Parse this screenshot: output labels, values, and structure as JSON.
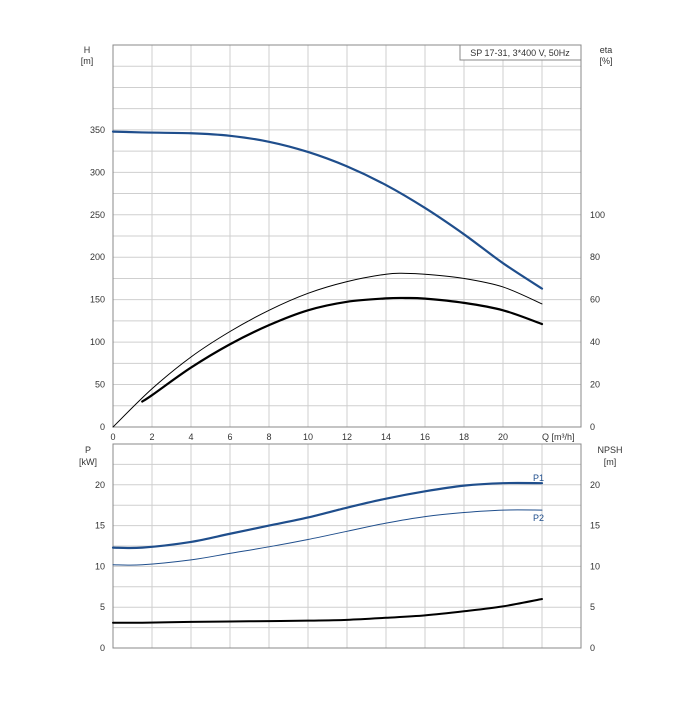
{
  "colors": {
    "blue": "#1f4e8c",
    "black": "#000000",
    "grid": "#cfcfcf",
    "frame": "#888888"
  },
  "chart_data": [
    {
      "type": "line",
      "title": "SP 17-31, 3*400 V, 50Hz",
      "xlabel": "Q [m³/h]",
      "x_ticks": [
        "0",
        "2",
        "4",
        "6",
        "8",
        "10",
        "12",
        "14",
        "16",
        "18",
        "20"
      ],
      "xlim": [
        0,
        24
      ],
      "ylabel_left": [
        "H",
        "[m]"
      ],
      "ylabel_right": [
        "eta",
        "[%]"
      ],
      "y_left_ticks": [
        "0",
        "50",
        "100",
        "150",
        "200",
        "250",
        "300",
        "350"
      ],
      "y_right_ticks": [
        "0",
        "20",
        "40",
        "60",
        "80",
        "100"
      ],
      "ylim_left": [
        0,
        450
      ],
      "ylim_right": [
        0,
        180
      ],
      "grid": true,
      "series": [
        {
          "axis": "left",
          "color": "blue",
          "width": 2.2,
          "x": [
            0,
            1.5,
            4,
            6,
            8,
            10,
            12,
            14,
            16,
            18,
            20,
            22
          ],
          "y": [
            348,
            347,
            346,
            343,
            336,
            324,
            307,
            285,
            258,
            227,
            193,
            163
          ]
        },
        {
          "axis": "right",
          "color": "black",
          "width": 1,
          "x": [
            0,
            2,
            4,
            6,
            8,
            10,
            12,
            14,
            15,
            16,
            18,
            20,
            22
          ],
          "y": [
            0,
            18,
            33,
            45,
            55,
            63,
            68.5,
            72,
            72.4,
            72,
            70,
            66,
            58
          ]
        },
        {
          "axis": "right",
          "color": "black",
          "width": 2.2,
          "x": [
            1.5,
            2,
            4,
            6,
            8,
            10,
            12,
            14,
            15,
            16,
            18,
            20,
            22
          ],
          "y": [
            12,
            15,
            28,
            39,
            48,
            55,
            59,
            60.6,
            60.8,
            60.5,
            58.5,
            55,
            48.5
          ]
        }
      ]
    },
    {
      "type": "line",
      "ylabel_left": [
        "P",
        "[kW]"
      ],
      "ylabel_right": [
        "NPSH",
        "[m]"
      ],
      "y_left_ticks": [
        "0",
        "5",
        "10",
        "15",
        "20"
      ],
      "y_right_ticks": [
        "0",
        "5",
        "10",
        "15",
        "20"
      ],
      "xlim": [
        0,
        24
      ],
      "ylim_left": [
        0,
        25
      ],
      "ylim_right": [
        0,
        25
      ],
      "grid": true,
      "series": [
        {
          "name": "P1",
          "axis": "left",
          "color": "blue",
          "width": 2.2,
          "x": [
            0,
            1.5,
            4,
            6,
            8,
            10,
            12,
            14,
            16,
            18,
            20,
            22
          ],
          "y": [
            12.3,
            12.3,
            13,
            14,
            15,
            16,
            17.2,
            18.3,
            19.2,
            19.9,
            20.2,
            20.2
          ]
        },
        {
          "name": "P2",
          "axis": "left",
          "color": "blue",
          "width": 1,
          "x": [
            0,
            1.5,
            4,
            6,
            8,
            10,
            12,
            14,
            16,
            18,
            20,
            22
          ],
          "y": [
            10.2,
            10.2,
            10.8,
            11.6,
            12.4,
            13.3,
            14.3,
            15.3,
            16.1,
            16.6,
            16.9,
            16.9
          ]
        },
        {
          "axis": "right",
          "color": "black",
          "width": 2,
          "x": [
            0,
            1.5,
            4,
            6,
            8,
            10,
            12,
            14,
            16,
            18,
            20,
            22
          ],
          "y": [
            3.1,
            3.1,
            3.2,
            3.25,
            3.3,
            3.35,
            3.45,
            3.7,
            4,
            4.5,
            5.1,
            6
          ]
        }
      ]
    }
  ]
}
